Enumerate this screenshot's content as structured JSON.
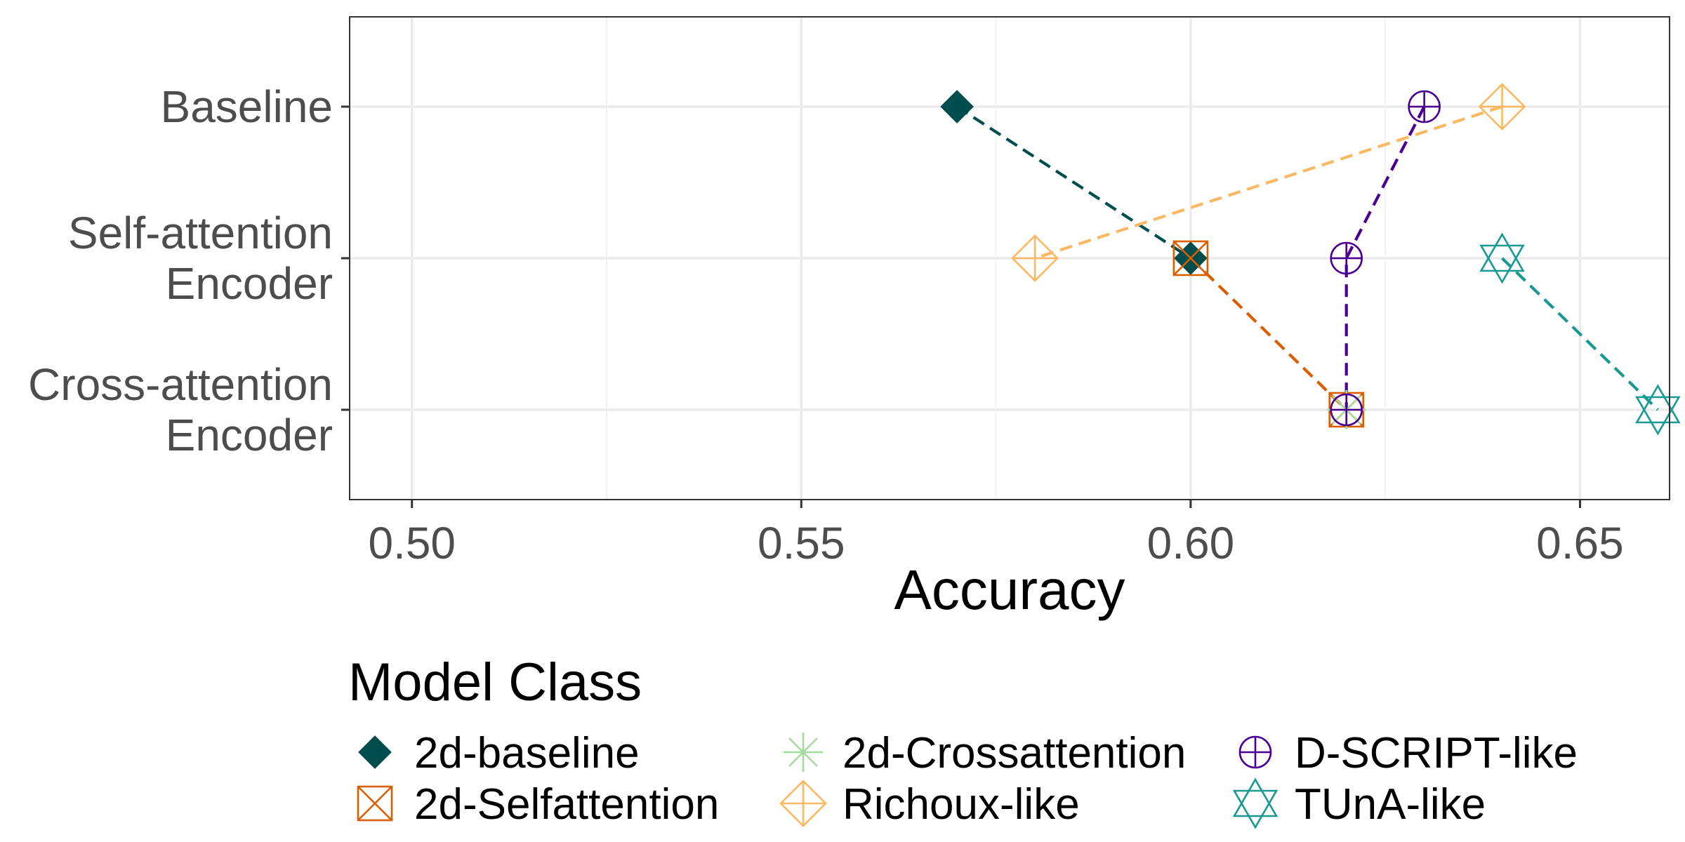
{
  "chart_data": {
    "type": "scatter",
    "title": "",
    "xlabel": "Accuracy",
    "ylabel": "",
    "xlim": [
      0.492,
      0.6615
    ],
    "x_ticks": [
      "0.50",
      "0.55",
      "0.60",
      "0.65"
    ],
    "x_tick_values": [
      0.5,
      0.55,
      0.6,
      0.65
    ],
    "categories": [
      {
        "lines": [
          "Baseline"
        ]
      },
      {
        "lines": [
          "Self-attention",
          "Encoder"
        ]
      },
      {
        "lines": [
          "Cross-attention",
          "Encoder"
        ]
      }
    ],
    "grid": true,
    "legend": {
      "title": "Model Class",
      "placement": "bottom"
    },
    "series": [
      {
        "name": "2d-baseline",
        "color": "#004d4d",
        "marker": "diamond-filled",
        "points": [
          [
            0.57,
            0
          ],
          [
            0.6,
            1
          ]
        ]
      },
      {
        "name": "2d-Selfattention",
        "color": "#d95f02",
        "marker": "square-x",
        "points": [
          [
            0.6,
            1
          ],
          [
            0.62,
            2
          ]
        ]
      },
      {
        "name": "2d-Crossattention",
        "color": "#a6dba0",
        "marker": "asterisk",
        "points": [
          [
            0.62,
            2
          ]
        ]
      },
      {
        "name": "Richoux-like",
        "color": "#fdb863",
        "marker": "diamond-plus",
        "points": [
          [
            0.64,
            0
          ],
          [
            0.58,
            1
          ]
        ]
      },
      {
        "name": "D-SCRIPT-like",
        "color": "#4b0092",
        "marker": "circle-plus",
        "points": [
          [
            0.63,
            0
          ],
          [
            0.62,
            1
          ],
          [
            0.62,
            2
          ]
        ]
      },
      {
        "name": "TUnA-like",
        "color": "#1a9993",
        "marker": "hexagram",
        "points": [
          [
            0.64,
            1
          ],
          [
            0.66,
            2
          ]
        ]
      }
    ]
  }
}
